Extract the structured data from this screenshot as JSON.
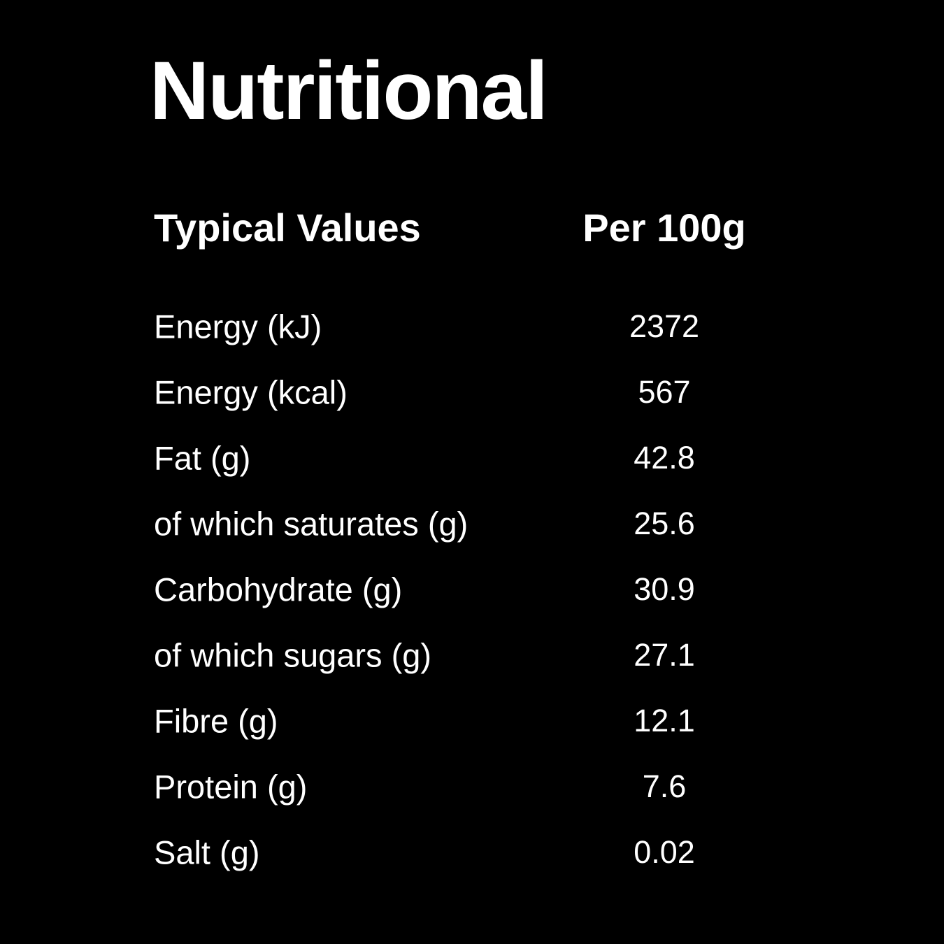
{
  "page": {
    "background_color": "#000000",
    "text_color": "#ffffff",
    "title": "Nutritional"
  },
  "table": {
    "headers": {
      "label": "Typical Values",
      "value": "Per 100g"
    },
    "rows": [
      {
        "label": "Energy (kJ)",
        "value": "2372"
      },
      {
        "label": "Energy (kcal)",
        "value": "567"
      },
      {
        "label": "Fat (g)",
        "value": "42.8"
      },
      {
        "label": "of which saturates (g)",
        "value": "25.6"
      },
      {
        "label": "Carbohydrate (g)",
        "value": "30.9"
      },
      {
        "label": "of which sugars (g)",
        "value": "27.1"
      },
      {
        "label": "Fibre (g)",
        "value": "12.1"
      },
      {
        "label": "Protein (g)",
        "value": "7.6"
      },
      {
        "label": "Salt (g)",
        "value": "0.02"
      }
    ]
  }
}
